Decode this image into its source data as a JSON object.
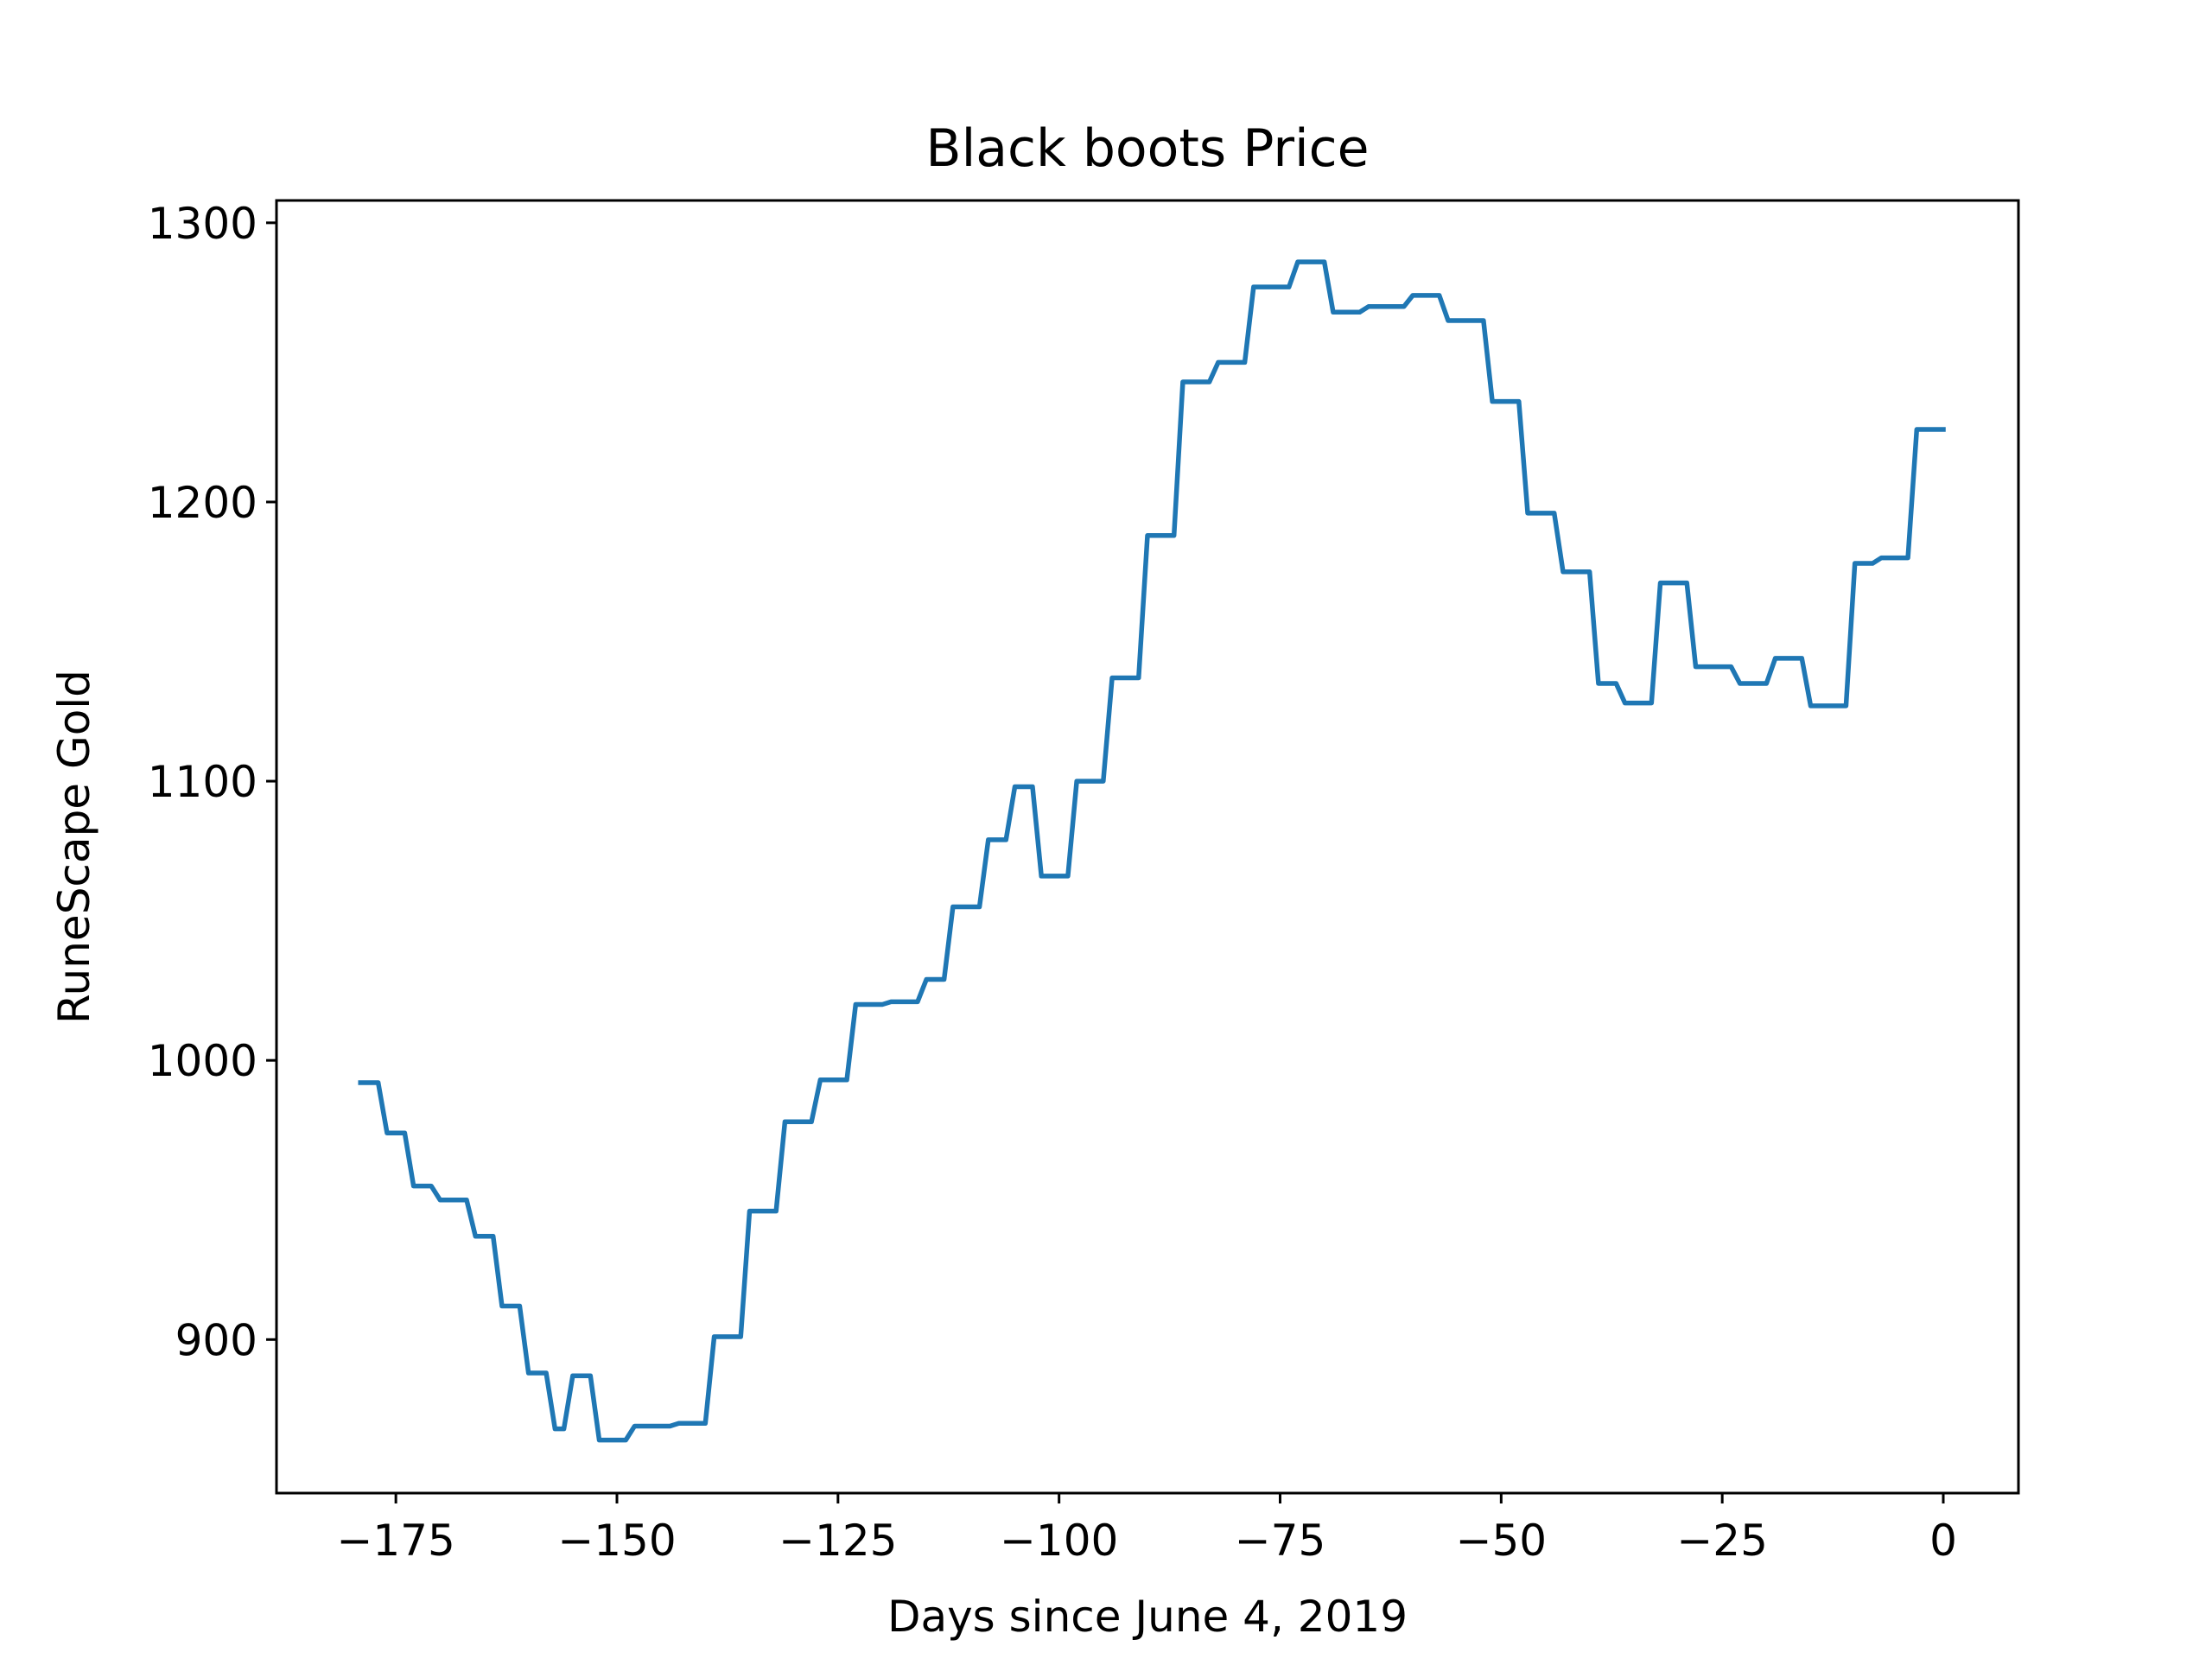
{
  "chart_data": {
    "type": "line",
    "title": "Black boots Price",
    "xlabel": "Days since June 4, 2019",
    "ylabel": "RuneScape Gold",
    "xlim": [
      -188.5,
      8.5
    ],
    "ylim": [
      845,
      1308
    ],
    "xticks": [
      -175,
      -150,
      -125,
      -100,
      -75,
      -50,
      -25,
      0
    ],
    "xtick_labels": [
      "−175",
      "−150",
      "−125",
      "−100",
      "−75",
      "−50",
      "−25",
      "0"
    ],
    "yticks": [
      900,
      1000,
      1100,
      1200,
      1300
    ],
    "ytick_labels": [
      "900",
      "1000",
      "1100",
      "1200",
      "1300"
    ],
    "grid": false,
    "legend": false,
    "series": [
      {
        "color": "#1f77b4",
        "x": [
          -179,
          -178,
          -177,
          -176,
          -175,
          -174,
          -173,
          -172,
          -171,
          -170,
          -169,
          -168,
          -167,
          -166,
          -165,
          -164,
          -163,
          -162,
          -161,
          -160,
          -159,
          -158,
          -157,
          -156,
          -155,
          -154,
          -153,
          -152,
          -151,
          -150,
          -149,
          -148,
          -147,
          -146,
          -145,
          -144,
          -143,
          -142,
          -141,
          -140,
          -139,
          -138,
          -137,
          -136,
          -135,
          -134,
          -133,
          -132,
          -131,
          -130,
          -129,
          -128,
          -127,
          -126,
          -125,
          -124,
          -123,
          -122,
          -121,
          -120,
          -119,
          -118,
          -117,
          -116,
          -115,
          -114,
          -113,
          -112,
          -111,
          -110,
          -109,
          -108,
          -107,
          -106,
          -105,
          -104,
          -103,
          -102,
          -101,
          -100,
          -99,
          -98,
          -97,
          -96,
          -95,
          -94,
          -93,
          -92,
          -91,
          -90,
          -89,
          -88,
          -87,
          -86,
          -85,
          -84,
          -83,
          -82,
          -81,
          -80,
          -79,
          -78,
          -77,
          -76,
          -75,
          -74,
          -73,
          -72,
          -71,
          -70,
          -69,
          -68,
          -67,
          -66,
          -65,
          -64,
          -63,
          -62,
          -61,
          -60,
          -59,
          -58,
          -57,
          -56,
          -55,
          -54,
          -53,
          -52,
          -51,
          -50,
          -49,
          -48,
          -47,
          -46,
          -45,
          -44,
          -43,
          -42,
          -41,
          -40,
          -39,
          -38,
          -37,
          -36,
          -35,
          -34,
          -33,
          -32,
          -31,
          -30,
          -29,
          -28,
          -27,
          -26,
          -25,
          -24,
          -23,
          -22,
          -21,
          -20,
          -19,
          -18,
          -17,
          -16,
          -15,
          -14,
          -13,
          -12,
          -11,
          -10,
          -9,
          -8,
          -7,
          -6,
          -5,
          -4,
          -3,
          -2,
          -1,
          0
        ],
        "y": [
          992,
          992,
          992,
          974,
          974,
          974,
          955,
          955,
          955,
          950,
          950,
          950,
          950,
          937,
          937,
          937,
          912,
          912,
          912,
          888,
          888,
          888,
          868,
          868,
          887,
          887,
          887,
          864,
          864,
          864,
          864,
          869,
          869,
          869,
          869,
          869,
          870,
          870,
          870,
          870,
          901,
          901,
          901,
          901,
          946,
          946,
          946,
          946,
          978,
          978,
          978,
          978,
          993,
          993,
          993,
          993,
          1020,
          1020,
          1020,
          1020,
          1021,
          1021,
          1021,
          1021,
          1029,
          1029,
          1029,
          1055,
          1055,
          1055,
          1055,
          1079,
          1079,
          1079,
          1098,
          1098,
          1098,
          1066,
          1066,
          1066,
          1066,
          1100,
          1100,
          1100,
          1100,
          1137,
          1137,
          1137,
          1137,
          1188,
          1188,
          1188,
          1188,
          1243,
          1243,
          1243,
          1243,
          1250,
          1250,
          1250,
          1250,
          1277,
          1277,
          1277,
          1277,
          1277,
          1286,
          1286,
          1286,
          1286,
          1268,
          1268,
          1268,
          1268,
          1270,
          1270,
          1270,
          1270,
          1270,
          1274,
          1274,
          1274,
          1274,
          1265,
          1265,
          1265,
          1265,
          1265,
          1236,
          1236,
          1236,
          1236,
          1196,
          1196,
          1196,
          1196,
          1175,
          1175,
          1175,
          1175,
          1135,
          1135,
          1135,
          1128,
          1128,
          1128,
          1128,
          1171,
          1171,
          1171,
          1171,
          1141,
          1141,
          1141,
          1141,
          1141,
          1135,
          1135,
          1135,
          1135,
          1144,
          1144,
          1144,
          1144,
          1127,
          1127,
          1127,
          1127,
          1127,
          1178,
          1178,
          1178,
          1180,
          1180,
          1180,
          1180,
          1226,
          1226,
          1226,
          1226
        ]
      }
    ]
  }
}
